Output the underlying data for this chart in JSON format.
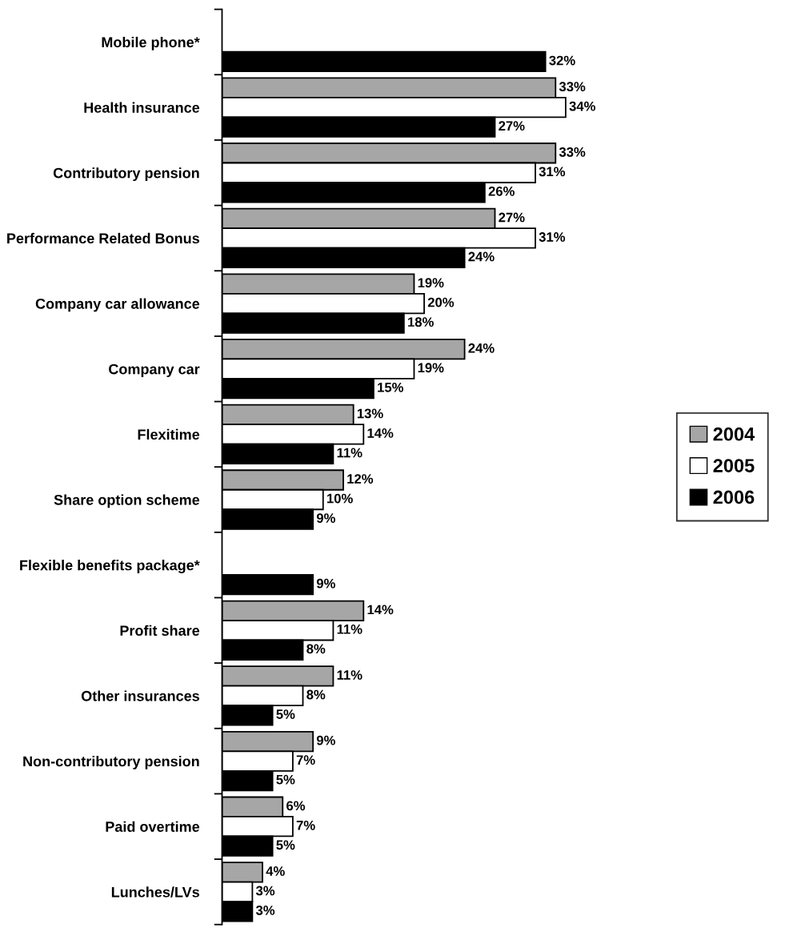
{
  "chart_data": {
    "type": "bar",
    "orientation": "horizontal",
    "categories": [
      "Mobile phone*",
      "Health insurance",
      "Contributory pension",
      "Performance Related Bonus",
      "Company car allowance",
      "Company car",
      "Flexitime",
      "Share option scheme",
      "Flexible benefits package*",
      "Profit share",
      "Other insurances",
      "Non-contributory pension",
      "Paid overtime",
      "Lunches/LVs"
    ],
    "series": [
      {
        "name": "2004",
        "color": "#a6a6a6",
        "values": [
          null,
          33,
          33,
          27,
          19,
          24,
          13,
          12,
          null,
          14,
          11,
          9,
          6,
          4
        ],
        "value_labels": [
          null,
          "33%",
          "33%",
          "27%",
          "19%",
          "24%",
          "13%",
          "12%",
          null,
          "14%",
          "11%",
          "9%",
          "6%",
          "4%"
        ]
      },
      {
        "name": "2005",
        "color": "#ffffff",
        "values": [
          null,
          34,
          31,
          31,
          20,
          19,
          14,
          10,
          null,
          11,
          8,
          7,
          7,
          3
        ],
        "value_labels": [
          null,
          "34%",
          "31%",
          "31%",
          "20%",
          "19%",
          "14%",
          "10%",
          null,
          "11%",
          "8%",
          "7%",
          "7%",
          "3%"
        ]
      },
      {
        "name": "2006",
        "color": "#000000",
        "values": [
          32,
          27,
          26,
          24,
          18,
          15,
          11,
          9,
          9,
          8,
          5,
          5,
          5,
          3
        ],
        "value_labels": [
          "32%",
          "27%",
          "26%",
          "24%",
          "18%",
          "15%",
          "11%",
          "9%",
          "9%",
          "8%",
          "5%",
          "5%",
          "5%",
          "3%"
        ]
      }
    ],
    "legend": "right",
    "grid": false
  }
}
